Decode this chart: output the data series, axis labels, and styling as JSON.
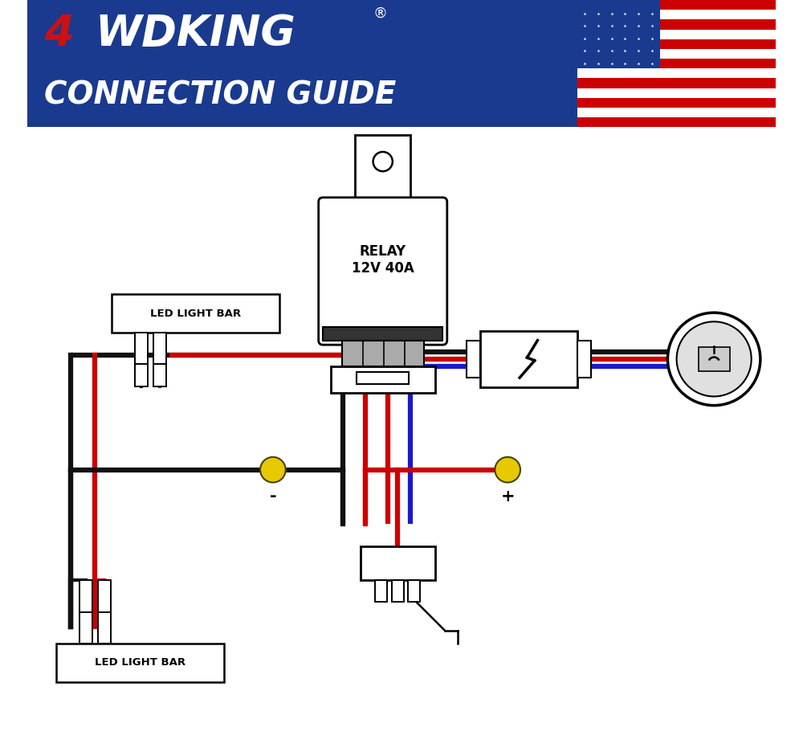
{
  "title_4_color": "#cc1111",
  "title_text_color": "#ffffff",
  "title_bg_color": "#1a3a8f",
  "title_line1_4": "4",
  "title_line1_rest": "WDKING",
  "title_reg": "®",
  "title_line2": "CONNECTION GUIDE",
  "diagram_bg": "#ffffff",
  "wire_red": "#cc0000",
  "wire_blue": "#1a1acc",
  "wire_black": "#111111",
  "wire_yellow": "#e8c800",
  "relay_label": "RELAY\n12V 40A",
  "led_label": "LED LIGHT BAR",
  "minus_label": "-",
  "plus_label": "+"
}
